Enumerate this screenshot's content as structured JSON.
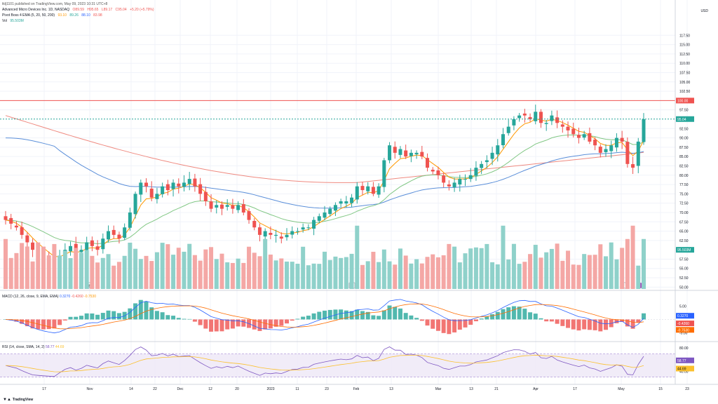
{
  "header": {
    "published": "tklj1101 published on TradingView.com, May 09, 2023 10:31 UTC+8",
    "symbol_name": "Advanced Micro Devices Inc. 1D, NASDAQ",
    "ohlc": [
      "O89.59",
      "H95.65",
      "L89.17",
      "C95.04",
      "+5.20 (+5.79%)"
    ],
    "pivot_name": "Pivot Boss 4 EMA (5, 20, 50, 200)",
    "pivot_values": [
      "93.10",
      "89.26",
      "88.10",
      "83.98"
    ],
    "vol_name": "Vol",
    "vol_value": "95.503M"
  },
  "currency": "USD",
  "price_axis": {
    "ticks": [
      "117.50",
      "115.00",
      "112.50",
      "110.00",
      "107.50",
      "105.00",
      "102.50",
      "97.50",
      "92.50",
      "90.00",
      "87.50",
      "85.00",
      "82.50",
      "80.00",
      "77.50",
      "75.00",
      "72.50",
      "70.00",
      "67.50",
      "65.00",
      "62.50",
      "57.50",
      "55.00",
      "52.50",
      "50.00"
    ],
    "tag_resistance": "100.00",
    "tag_last": "95.04",
    "tag_volume": "95.503M",
    "resistance_level": 100,
    "last_price": 95.04,
    "min": 49.5,
    "max": 120
  },
  "macd": {
    "label": "MACD (12, 26, close, 9, EMA, EMA)",
    "values": [
      "0.3270",
      "-0.4260",
      "-0.7530"
    ],
    "ticks": [
      "5.00",
      "-5.00"
    ],
    "tags": [
      "0.3270",
      "-0.4260",
      "-0.7530"
    ],
    "min": -7.5,
    "max": 8
  },
  "rsi": {
    "label": "RSI (14, close, SMA, 14, 2)",
    "values": [
      "58.77",
      "44.69"
    ],
    "ticks": [
      "80.00",
      "40.00"
    ],
    "tags": [
      "58.77",
      "44.69"
    ],
    "band_upper": 70,
    "band_lower": 30,
    "min": 20,
    "max": 85
  },
  "time_axis": [
    "17",
    "Nov",
    "14",
    "22",
    "Dec",
    "12",
    "20",
    "2023",
    "11",
    "23",
    "Feb",
    "13",
    "Mar",
    "13",
    "21",
    "Apr",
    "17",
    "May",
    "15",
    "23"
  ],
  "earnings_markers": [
    "E",
    "E",
    "E"
  ],
  "logo": "TradingView",
  "colors": {
    "up": "#26a69a",
    "down": "#ef5350",
    "ema5": "#ff9800",
    "ema20": "#81c784",
    "ema50": "#5b8fd9",
    "ema200": "#ef8a80",
    "resistance": "#ef5350",
    "macd_line": "#2962ff",
    "signal_line": "#ff6d00",
    "rsi_line": "#7e57c2",
    "rsi_ma": "#fbc02d"
  },
  "chart_data": {
    "type": "candlestick",
    "closes": [
      68,
      67,
      66,
      64,
      62,
      60,
      59,
      58,
      57,
      56,
      58,
      60,
      61,
      59,
      60,
      62,
      61,
      60,
      63,
      65,
      64,
      63,
      66,
      70,
      75,
      78,
      77,
      74,
      75,
      77,
      76,
      78,
      77,
      78,
      79,
      77,
      75,
      73,
      71,
      72,
      71,
      72,
      71,
      72,
      70,
      68,
      66,
      64,
      65,
      64,
      64,
      63,
      64,
      65,
      65,
      66,
      66,
      68,
      69,
      70,
      71,
      72,
      73,
      73,
      74,
      77,
      76,
      77,
      75,
      77,
      84,
      88,
      86,
      87,
      85,
      86,
      86,
      85,
      82,
      81,
      80,
      78,
      77,
      78,
      79,
      79,
      80,
      82,
      83,
      84,
      86,
      88,
      91,
      93,
      95,
      96,
      96,
      95,
      97,
      94,
      94,
      96,
      94,
      93,
      92,
      91,
      90,
      91,
      89,
      88,
      86,
      87,
      88,
      90,
      89,
      83,
      82,
      89,
      95
    ]
  }
}
